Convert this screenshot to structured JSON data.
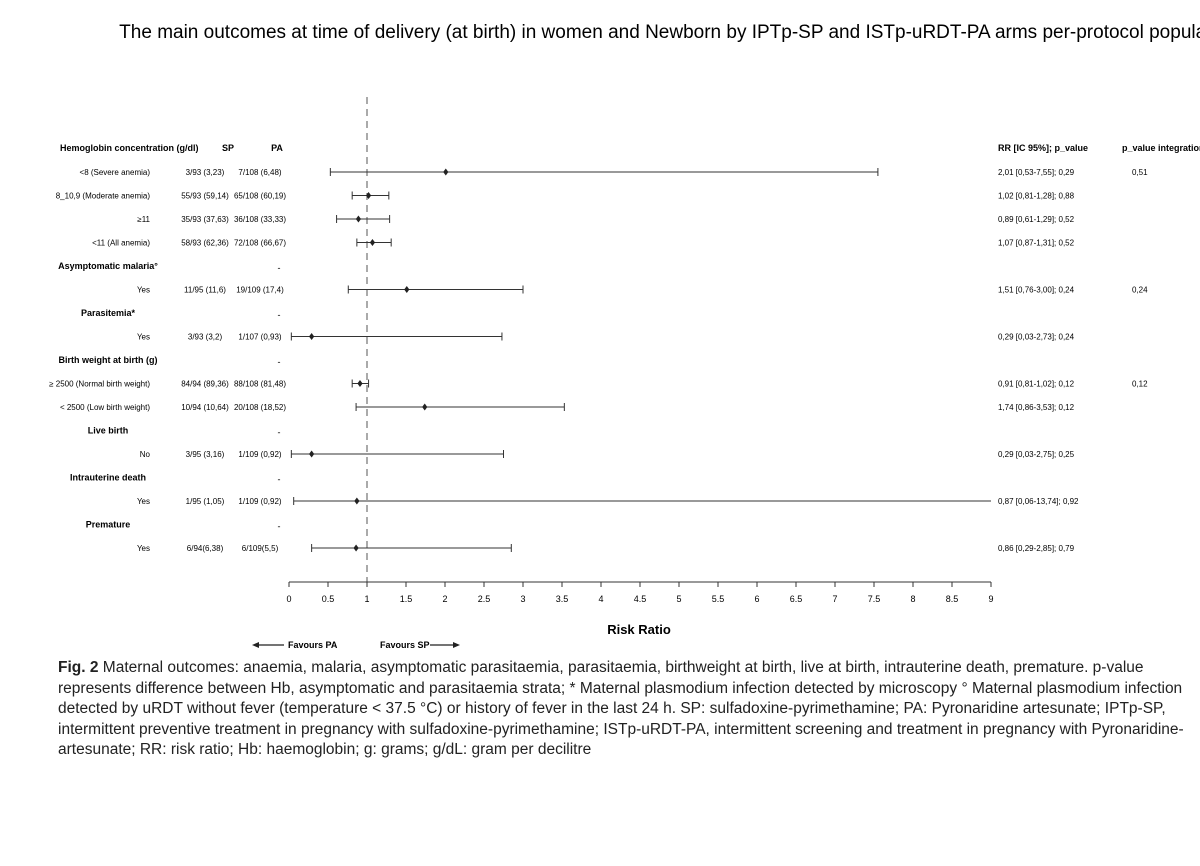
{
  "chart_data": {
    "type": "forest",
    "title": "The main outcomes at time of delivery (at birth) in women and Newborn by IPTp-SP and ISTp-uRDT-PA arms per-protocol population",
    "xlabel": "Risk Ratio",
    "xlim": [
      0,
      9
    ],
    "ticks": [
      "0",
      "0.5",
      "1",
      "1.5",
      "2",
      "2.5",
      "3",
      "3.5",
      "4",
      "4.5",
      "5",
      "5.5",
      "6",
      "6.5",
      "7",
      "7.5",
      "8",
      "8.5",
      "9"
    ],
    "reference_line": 1,
    "favours_left": "Favours PA",
    "favours_right": "Favours SP",
    "columns": {
      "label": "Hemoglobin concentration (g/dl)",
      "sp": "SP",
      "pa": "PA",
      "rr": "RR [IC 95%]; p_value",
      "pint": "p_value integration"
    },
    "rows": [
      {
        "kind": "data",
        "label": "<8 (Severe anemia)",
        "sp": "3/93 (3,23)",
        "pa": "7/108 (6,48)",
        "rr": 2.01,
        "lo": 0.53,
        "hi": 7.55,
        "rr_text": "2,01 [0,53-7,55]; 0,29",
        "pint": "0,51"
      },
      {
        "kind": "data",
        "label": "8_10,9 (Moderate anemia)",
        "sp": "55/93 (59,14)",
        "pa": "65/108 (60,19)",
        "rr": 1.02,
        "lo": 0.81,
        "hi": 1.28,
        "rr_text": "1,02 [0,81-1,28]; 0,88",
        "pint": ""
      },
      {
        "kind": "data",
        "label": "≥11",
        "sp": "35/93 (37,63)",
        "pa": "36/108 (33,33)",
        "rr": 0.89,
        "lo": 0.61,
        "hi": 1.29,
        "rr_text": "0,89 [0,61-1,29]; 0,52",
        "pint": ""
      },
      {
        "kind": "data",
        "label": "<11 (All anemia)",
        "sp": "58/93 (62,36)",
        "pa": "72/108 (66,67)",
        "rr": 1.07,
        "lo": 0.87,
        "hi": 1.31,
        "rr_text": "1,07 [0,87-1,31]; 0,52",
        "pint": ""
      },
      {
        "kind": "header",
        "label": "Asymptomatic malaria°",
        "pa": "-"
      },
      {
        "kind": "data",
        "label": "Yes",
        "sp": "11/95 (11,6)",
        "pa": "19/109 (17,4)",
        "rr": 1.51,
        "lo": 0.76,
        "hi": 3.0,
        "rr_text": "1,51 [0,76-3,00]; 0,24",
        "pint": "0,24"
      },
      {
        "kind": "header",
        "label": "Parasitemia*",
        "pa": "-"
      },
      {
        "kind": "data",
        "label": "Yes",
        "sp": "3/93 (3,2)",
        "pa": "1/107 (0,93)",
        "rr": 0.29,
        "lo": 0.03,
        "hi": 2.73,
        "rr_text": "0,29 [0,03-2,73]; 0,24",
        "pint": ""
      },
      {
        "kind": "header",
        "label": "Birth weight at birth (g)",
        "pa": "-"
      },
      {
        "kind": "data",
        "label": "≥ 2500 (Normal birth weight)",
        "sp": "84/94 (89,36)",
        "pa": "88/108 (81,48)",
        "rr": 0.91,
        "lo": 0.81,
        "hi": 1.02,
        "rr_text": "0,91 [0,81-1,02]; 0,12",
        "pint": "0,12"
      },
      {
        "kind": "data",
        "label": "< 2500 (Low birth weight)",
        "sp": "10/94 (10,64)",
        "pa": "20/108 (18,52)",
        "rr": 1.74,
        "lo": 0.86,
        "hi": 3.53,
        "rr_text": "1,74 [0,86-3,53]; 0,12",
        "pint": ""
      },
      {
        "kind": "header",
        "label": "Live birth",
        "pa": "-"
      },
      {
        "kind": "data",
        "label": "No",
        "sp": "3/95 (3,16)",
        "pa": "1/109 (0,92)",
        "rr": 0.29,
        "lo": 0.03,
        "hi": 2.75,
        "rr_text": "0,29 [0,03-2,75]; 0,25",
        "pint": ""
      },
      {
        "kind": "header",
        "label": "Intrauterine death",
        "pa": "-"
      },
      {
        "kind": "data",
        "label": "Yes",
        "sp": "1/95 (1,05)",
        "pa": "1/109 (0,92)",
        "rr": 0.87,
        "lo": 0.06,
        "hi": 13.74,
        "rr_text": "0,87 [0,06-13,74]; 0,92",
        "pint": ""
      },
      {
        "kind": "header",
        "label": "Premature",
        "pa": "-"
      },
      {
        "kind": "data",
        "label": "Yes",
        "sp": "6/94(6,38)",
        "pa": "6/109(5,5)",
        "rr": 0.86,
        "lo": 0.29,
        "hi": 2.85,
        "rr_text": "0,86 [0,29-2,85]; 0,79",
        "pint": ""
      }
    ]
  },
  "caption": {
    "fig_label": "Fig. 2",
    "text": "Maternal outcomes: anaemia, malaria, asymptomatic parasitaemia, parasitaemia, birthweight at birth, live at birth, intrauterine death, premature. p-value represents difference between Hb, asymptomatic and parasitaemia strata; * Maternal plasmodium infection detected by microscopy ° Maternal plasmodium infection detected by uRDT without fever (temperature < 37.5 °C) or history of fever in the last 24 h. SP: sulfadoxine-pyrimethamine; PA: Pyronaridine artesunate; IPTp-SP, intermittent preventive treatment in pregnancy with sulfadoxine-pyrimethamine; ISTp-uRDT-PA, intermittent screening and treatment in pregnancy with Pyronaridine-artesunate; RR: risk ratio; Hb: haemoglobin; g: grams; g/dL: gram per decilitre"
  }
}
